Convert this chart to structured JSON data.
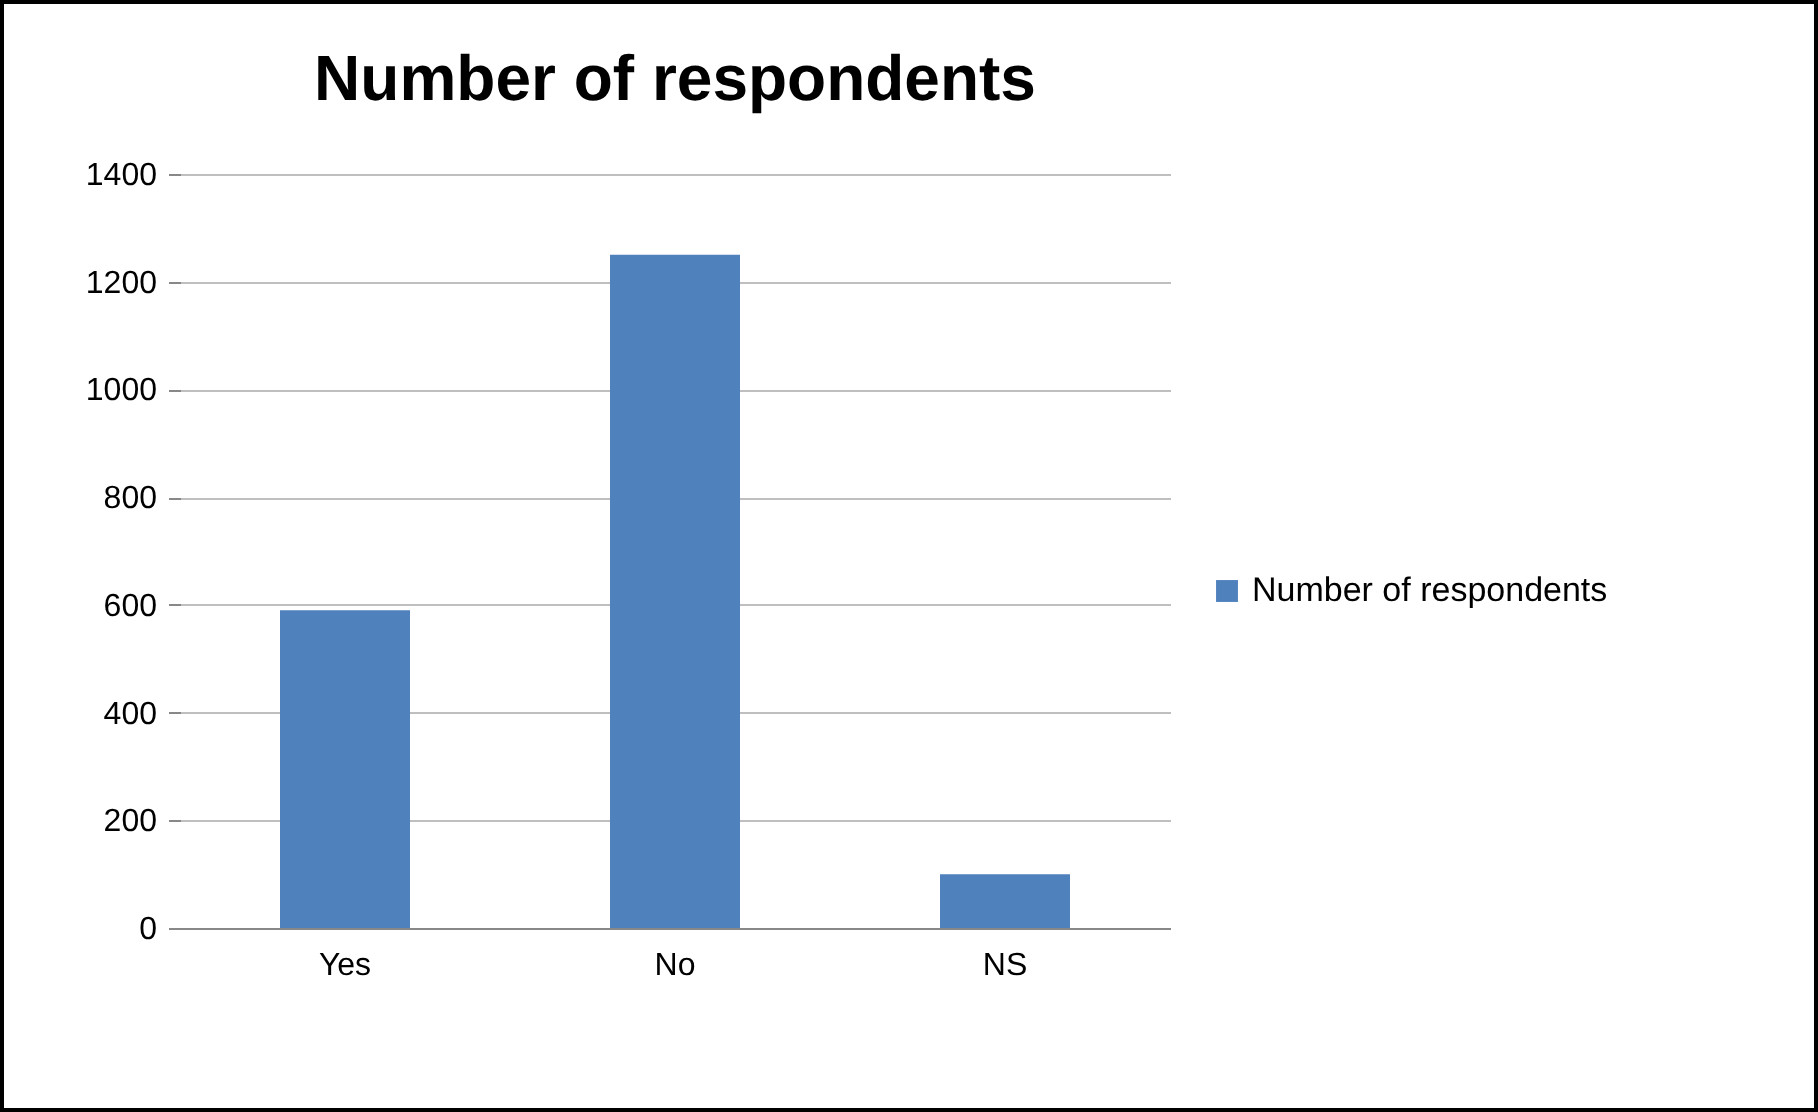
{
  "chart_data": {
    "type": "bar",
    "title": "Number of respondents",
    "categories": [
      "Yes",
      "No",
      "NS"
    ],
    "series": [
      {
        "name": "Number of respondents",
        "color": "#4f81bd",
        "values": [
          590,
          1250,
          100
        ]
      }
    ],
    "ylim": [
      0,
      1400
    ],
    "yticks": [
      0,
      200,
      400,
      600,
      800,
      1000,
      1200,
      1400
    ],
    "grid": "y",
    "legend": "right"
  }
}
